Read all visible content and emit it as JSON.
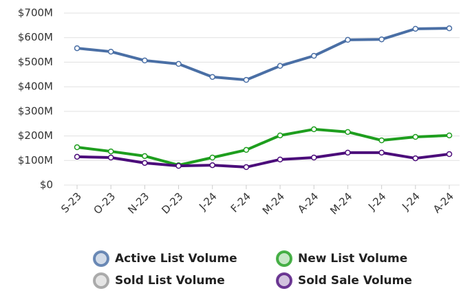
{
  "chart_data": {
    "type": "line",
    "categories": [
      "S-23",
      "O-23",
      "N-23",
      "D-23",
      "J-24",
      "F-24",
      "M-24",
      "A-24",
      "M-24",
      "J-24",
      "J-24",
      "A-24"
    ],
    "series": [
      {
        "name": "Active List Volume",
        "color": "#4a6fa5",
        "visible": true,
        "values": [
          557,
          543,
          507,
          493,
          440,
          428,
          485,
          526,
          591,
          593,
          636,
          638
        ]
      },
      {
        "name": "New List Volume",
        "color": "#1e9e1e",
        "visible": true,
        "values": [
          154,
          137,
          118,
          81,
          112,
          143,
          202,
          227,
          216,
          182,
          196,
          202
        ]
      },
      {
        "name": "Sold List Volume",
        "color": "#999999",
        "visible": false,
        "values": [
          null,
          null,
          null,
          null,
          null,
          null,
          null,
          null,
          null,
          null,
          null,
          null
        ]
      },
      {
        "name": "Sold Sale Volume",
        "color": "#4b0b7a",
        "visible": true,
        "values": [
          115,
          112,
          90,
          78,
          81,
          73,
          104,
          112,
          132,
          132,
          109,
          126
        ]
      }
    ],
    "ylim": [
      0,
      700
    ],
    "yticks": [
      {
        "value": 0,
        "label": "$0"
      },
      {
        "value": 100,
        "label": "$100M"
      },
      {
        "value": 200,
        "label": "$200M"
      },
      {
        "value": 300,
        "label": "$300M"
      },
      {
        "value": 400,
        "label": "$400M"
      },
      {
        "value": 500,
        "label": "$500M"
      },
      {
        "value": 600,
        "label": "$600M"
      },
      {
        "value": 700,
        "label": "$700M"
      }
    ],
    "grid": true,
    "legend": "bottom"
  }
}
